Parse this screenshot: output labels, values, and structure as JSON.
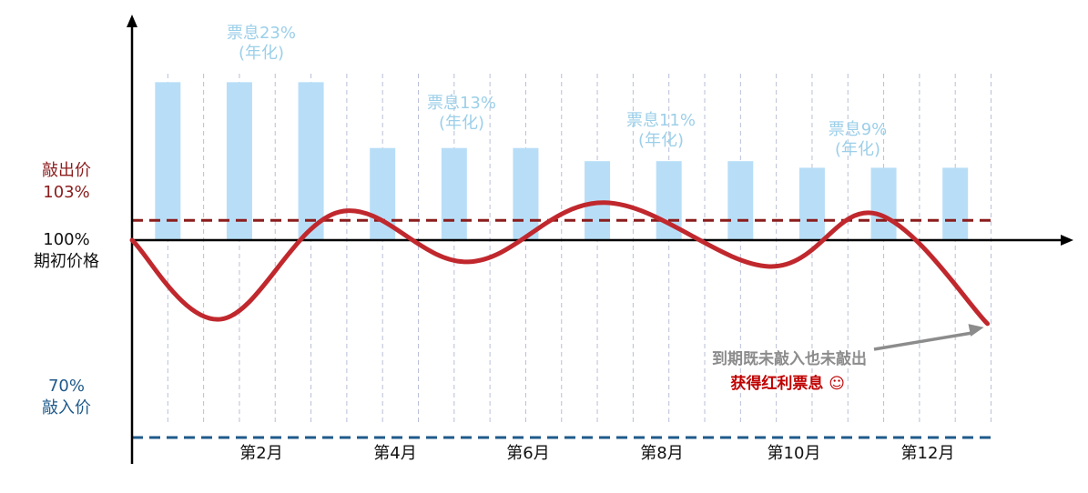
{
  "chart_data": {
    "type": "bar+line",
    "months": [
      1,
      2,
      3,
      4,
      5,
      6,
      7,
      8,
      9,
      10,
      11,
      12
    ],
    "x_tick_labels": [
      "",
      "第2月",
      "",
      "第4月",
      "",
      "第6月",
      "",
      "第8月",
      "",
      "第10月",
      "",
      "第12月"
    ],
    "coupon_bars_percent_of_initial": [
      124,
      124,
      124,
      114,
      114,
      114,
      112,
      112,
      112,
      111,
      111,
      111
    ],
    "price_path_percent": [
      {
        "x": 0,
        "y": 100
      },
      {
        "x": 1.25,
        "y": 88
      },
      {
        "x": 2.9,
        "y": 104.3
      },
      {
        "x": 4.7,
        "y": 96.7
      },
      {
        "x": 6.6,
        "y": 105.7
      },
      {
        "x": 8.9,
        "y": 96
      },
      {
        "x": 10.4,
        "y": 104
      },
      {
        "x": 11.95,
        "y": 87.3
      }
    ],
    "barrier_levels": {
      "knock_out": 103,
      "initial": 100,
      "knock_in": 70
    },
    "y_axis_range": [
      66,
      134
    ],
    "x_axis_range": [
      0,
      13.1
    ],
    "colors": {
      "bar": "#b8def7",
      "price_line": "#c0282d",
      "knock_out_line": "#8b1c1c",
      "knock_in_line": "#1f5a8a",
      "grid": "#b9bfd6",
      "axis": "#000000",
      "arrow": "#8c8c8c"
    }
  },
  "labels": {
    "knock_out_name": "敲出价",
    "knock_out_value": "103%",
    "initial_value": "100%",
    "initial_name": "期初价格",
    "knock_in_value": "70%",
    "knock_in_name": "敲入价"
  },
  "coupons": [
    {
      "rate": "票息23%",
      "note": "(年化)"
    },
    {
      "rate": "票息13%",
      "note": "(年化)"
    },
    {
      "rate": "票息11%",
      "note": "(年化)"
    },
    {
      "rate": "票息9%",
      "note": "(年化)"
    }
  ],
  "annotation": {
    "line1": "到期既未敲入也未敲出",
    "line2": "获得红利票息 ☺"
  }
}
